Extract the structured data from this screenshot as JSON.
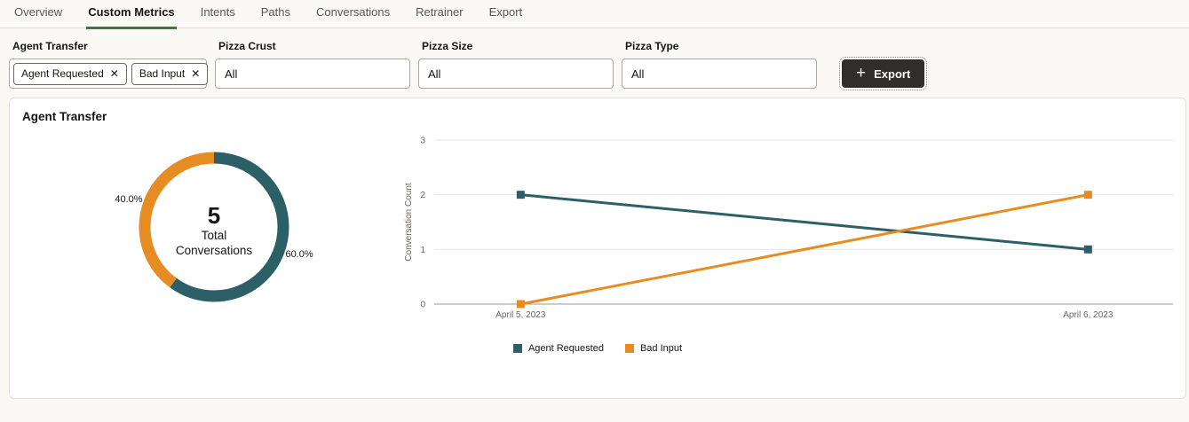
{
  "colors": {
    "teal": "#2C5F66",
    "orange": "#E78B23",
    "accent_green": "#497240",
    "button_bg": "#312D2A",
    "page_bg": "#FAF9F6"
  },
  "icons": {
    "plus": "+",
    "remove_chip": "✕"
  },
  "tabs": {
    "active": "Custom Metrics",
    "items": [
      {
        "label": "Overview"
      },
      {
        "label": "Custom Metrics"
      },
      {
        "label": "Intents"
      },
      {
        "label": "Paths"
      },
      {
        "label": "Conversations"
      },
      {
        "label": "Retrainer"
      },
      {
        "label": "Export"
      }
    ]
  },
  "filters": {
    "agent_transfer": {
      "label": "Agent Transfer",
      "chips": [
        {
          "text": "Agent Requested"
        },
        {
          "text": "Bad Input"
        }
      ]
    },
    "pizza_crust": {
      "label": "Pizza Crust",
      "value": "All"
    },
    "pizza_size": {
      "label": "Pizza Size",
      "value": "All"
    },
    "pizza_type": {
      "label": "Pizza Type",
      "value": "All"
    }
  },
  "export_button": {
    "label": "Export"
  },
  "panel": {
    "title": "Agent Transfer"
  },
  "chart_data": [
    {
      "type": "pie",
      "donut": true,
      "title": "Agent Transfer",
      "slices": [
        {
          "label": "Agent Requested",
          "pct": 60.0,
          "display": "60.0%",
          "color": "#2C5F66"
        },
        {
          "label": "Bad Input",
          "pct": 40.0,
          "display": "40.0%",
          "color": "#E78B23"
        }
      ],
      "center_value": "5",
      "center_label_lines": [
        "Total",
        "Conversations"
      ]
    },
    {
      "type": "line",
      "x": [
        "April 5, 2023",
        "April 6, 2023"
      ],
      "series": [
        {
          "name": "Agent Requested",
          "values": [
            2,
            1
          ],
          "color": "#2C5F66"
        },
        {
          "name": "Bad Input",
          "values": [
            0,
            2
          ],
          "color": "#E78B23"
        }
      ],
      "ylabel": "Conversation Count",
      "ylim": [
        0,
        3
      ],
      "yticks": [
        0,
        1,
        2,
        3
      ],
      "grid": true,
      "marker": "square",
      "legend_position": "bottom"
    }
  ]
}
